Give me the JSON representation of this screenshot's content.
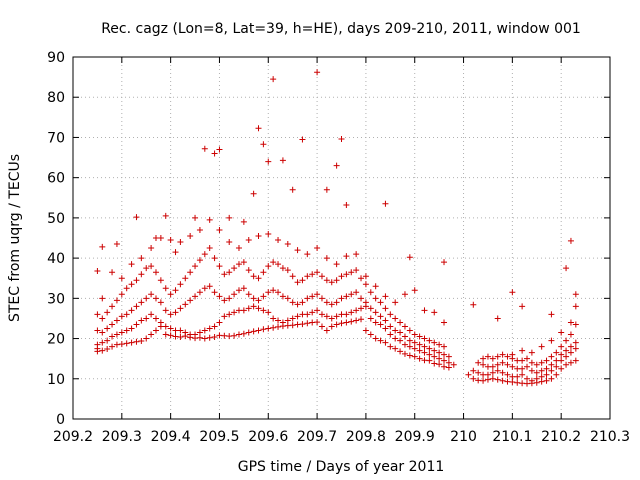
{
  "chart_data": {
    "type": "scatter",
    "title": "Rec. cagz (Lon=8, Lat=39, h=HE), days 209-210, 2011, window 001",
    "xlabel": "GPS time / Days of year 2011",
    "ylabel": "STEC from uqrg / TECUs",
    "xlim": [
      209.2,
      210.3
    ],
    "ylim": [
      0,
      90
    ],
    "xticks": [
      "209.2",
      "209.3",
      "209.4",
      "209.5",
      "209.6",
      "209.7",
      "209.8",
      "209.9",
      "210",
      "210.1",
      "210.2",
      "210.3"
    ],
    "yticks": [
      "0",
      "10",
      "20",
      "30",
      "40",
      "50",
      "60",
      "70",
      "80",
      "90"
    ],
    "grid": true,
    "marker": "+",
    "color": "#cc0000",
    "series": [
      {
        "x": [
          209.25,
          209.25,
          209.26,
          209.27,
          209.28,
          209.29,
          209.3,
          209.31,
          209.32,
          209.33,
          209.34,
          209.35,
          209.36,
          209.37,
          209.38,
          209.39,
          209.4,
          209.41,
          209.42,
          209.43,
          209.44,
          209.45,
          209.46,
          209.47,
          209.48,
          209.49,
          209.5,
          209.51,
          209.52,
          209.53,
          209.54,
          209.55,
          209.56,
          209.57,
          209.58,
          209.59,
          209.6,
          209.61,
          209.62,
          209.63,
          209.64,
          209.65,
          209.66,
          209.67,
          209.68,
          209.69,
          209.7,
          209.71,
          209.72,
          209.73,
          209.74,
          209.75,
          209.76,
          209.77,
          209.78,
          209.79,
          209.8,
          209.81,
          209.82,
          209.83,
          209.84,
          209.85,
          209.86,
          209.87,
          209.88,
          209.89,
          209.9,
          209.91,
          209.92,
          209.93,
          209.94,
          209.95,
          209.96,
          209.97,
          210.01,
          210.02,
          210.03,
          210.04,
          210.05,
          210.06,
          210.07,
          210.08,
          210.09,
          210.1,
          210.11,
          210.12,
          210.13,
          210.14,
          210.15,
          210.16,
          210.17,
          210.18,
          210.19,
          210.2,
          210.21,
          210.22,
          210.23
        ],
        "y": [
          16.8,
          17.5,
          17.0,
          17.4,
          18.0,
          18.5,
          18.6,
          18.8,
          19.0,
          19.2,
          19.4,
          20.0,
          21.0,
          22.0,
          23.0,
          21.0,
          20.8,
          20.5,
          20.4,
          20.6,
          20.3,
          20.1,
          20.2,
          20.0,
          20.2,
          20.4,
          20.8,
          20.7,
          20.6,
          20.7,
          21.0,
          21.2,
          21.5,
          21.8,
          22.0,
          22.3,
          22.5,
          22.7,
          22.9,
          23.1,
          23.2,
          23.3,
          23.5,
          23.6,
          23.8,
          24.0,
          24.1,
          23.0,
          22.0,
          23.0,
          23.5,
          23.8,
          24.0,
          24.2,
          24.5,
          24.8,
          22.0,
          21.0,
          20.0,
          19.5,
          19.0,
          18.0,
          17.5,
          16.8,
          16.2,
          15.8,
          15.5,
          15.0,
          14.6,
          14.5,
          13.8,
          13.6,
          13.0,
          12.8,
          11.0,
          10.0,
          9.6,
          9.5,
          9.8,
          10.0,
          9.8,
          9.5,
          9.3,
          9.2,
          9.0,
          8.9,
          8.8,
          8.9,
          9.0,
          9.3,
          9.5,
          10.0,
          11.0,
          12.5,
          13.5,
          14.0,
          14.5
        ]
      },
      {
        "x": [
          209.25,
          209.26,
          209.27,
          209.28,
          209.29,
          209.3,
          209.31,
          209.32,
          209.33,
          209.34,
          209.35,
          209.36,
          209.37,
          209.38,
          209.39,
          209.4,
          209.41,
          209.42,
          209.43,
          209.44,
          209.45,
          209.46,
          209.47,
          209.48,
          209.49,
          209.5,
          209.51,
          209.52,
          209.53,
          209.54,
          209.55,
          209.56,
          209.57,
          209.58,
          209.59,
          209.6,
          209.61,
          209.62,
          209.63,
          209.64,
          209.65,
          209.66,
          209.67,
          209.68,
          209.69,
          209.7,
          209.71,
          209.72,
          209.73,
          209.74,
          209.75,
          209.76,
          209.77,
          209.78,
          209.79,
          209.8,
          209.81,
          209.82,
          209.83,
          209.84,
          209.85,
          209.86,
          209.87,
          209.88,
          209.89,
          209.9,
          209.91,
          209.92,
          209.93,
          209.94,
          209.95,
          209.96,
          209.97,
          209.98,
          210.02,
          210.03,
          210.04,
          210.05,
          210.06,
          210.07,
          210.08,
          210.09,
          210.1,
          210.11,
          210.12,
          210.13,
          210.14,
          210.15,
          210.16,
          210.17,
          210.18,
          210.19,
          210.2,
          210.21,
          210.22,
          210.23
        ],
        "y": [
          18.5,
          19.0,
          19.5,
          20.5,
          21.0,
          21.5,
          22.0,
          22.5,
          23.5,
          24.5,
          25.0,
          26.0,
          25.0,
          24.0,
          23.0,
          22.5,
          22.0,
          22.0,
          21.5,
          21.0,
          21.0,
          21.5,
          22.0,
          22.5,
          23.0,
          24.0,
          25.5,
          26.0,
          26.5,
          27.0,
          27.0,
          27.5,
          28.0,
          27.5,
          27.0,
          26.5,
          25.0,
          24.5,
          24.0,
          24.5,
          25.0,
          25.5,
          26.0,
          26.0,
          26.5,
          27.0,
          26.0,
          25.5,
          25.0,
          25.5,
          26.0,
          26.0,
          26.5,
          27.0,
          27.5,
          28.0,
          25.0,
          24.0,
          23.5,
          22.5,
          21.0,
          20.0,
          19.5,
          18.5,
          18.0,
          17.5,
          17.0,
          16.5,
          16.0,
          15.5,
          15.0,
          14.5,
          14.0,
          13.5,
          12.0,
          11.5,
          11.0,
          11.0,
          11.5,
          12.0,
          11.5,
          11.0,
          10.5,
          10.5,
          11.0,
          10.0,
          9.5,
          10.0,
          10.5,
          11.0,
          12.0,
          13.0,
          14.5,
          15.5,
          16.5,
          17.5
        ]
      },
      {
        "x": [
          209.25,
          209.26,
          209.27,
          209.28,
          209.29,
          209.3,
          209.31,
          209.32,
          209.33,
          209.34,
          209.35,
          209.36,
          209.37,
          209.38,
          209.39,
          209.4,
          209.41,
          209.42,
          209.43,
          209.44,
          209.45,
          209.46,
          209.47,
          209.48,
          209.49,
          209.5,
          209.51,
          209.52,
          209.53,
          209.54,
          209.55,
          209.56,
          209.57,
          209.58,
          209.59,
          209.6,
          209.61,
          209.62,
          209.63,
          209.64,
          209.65,
          209.66,
          209.67,
          209.68,
          209.69,
          209.7,
          209.71,
          209.72,
          209.73,
          209.74,
          209.75,
          209.76,
          209.77,
          209.78,
          209.79,
          209.8,
          209.81,
          209.82,
          209.83,
          209.84,
          209.85,
          209.86,
          209.87,
          209.88,
          209.89,
          209.9,
          209.91,
          209.92,
          209.93,
          209.94,
          209.95,
          209.96,
          209.97,
          210.03,
          210.04,
          210.05,
          210.06,
          210.07,
          210.08,
          210.09,
          210.1,
          210.11,
          210.12,
          210.13,
          210.14,
          210.15,
          210.16,
          210.17,
          210.18,
          210.19,
          210.2,
          210.21,
          210.22,
          210.23
        ],
        "y": [
          22.0,
          21.5,
          22.5,
          23.5,
          24.5,
          25.5,
          26.0,
          27.0,
          28.0,
          29.0,
          30.0,
          31.0,
          30.0,
          29.0,
          27.0,
          26.0,
          26.5,
          27.5,
          28.5,
          29.5,
          30.5,
          31.5,
          32.5,
          33.0,
          31.5,
          30.5,
          29.5,
          30.0,
          31.0,
          32.0,
          32.5,
          31.0,
          30.0,
          29.5,
          30.5,
          31.5,
          32.0,
          31.5,
          30.5,
          30.0,
          29.0,
          28.5,
          29.0,
          30.0,
          30.5,
          31.0,
          30.0,
          29.0,
          28.5,
          29.0,
          30.0,
          30.5,
          31.0,
          31.5,
          30.0,
          29.0,
          27.5,
          26.5,
          25.5,
          24.5,
          23.0,
          22.0,
          21.5,
          20.5,
          19.5,
          19.0,
          18.5,
          18.0,
          17.5,
          17.0,
          16.5,
          16.0,
          15.5,
          14.0,
          13.5,
          13.0,
          13.0,
          13.5,
          14.0,
          13.5,
          13.0,
          12.5,
          12.5,
          13.0,
          12.0,
          11.5,
          12.0,
          12.5,
          13.5,
          14.5,
          16.0,
          17.0,
          18.0,
          19.0
        ]
      },
      {
        "x": [
          209.25,
          209.26,
          209.27,
          209.28,
          209.29,
          209.3,
          209.31,
          209.32,
          209.33,
          209.34,
          209.35,
          209.36,
          209.37,
          209.38,
          209.39,
          209.4,
          209.41,
          209.42,
          209.43,
          209.44,
          209.45,
          209.46,
          209.47,
          209.48,
          209.49,
          209.5,
          209.51,
          209.52,
          209.53,
          209.54,
          209.55,
          209.56,
          209.57,
          209.58,
          209.59,
          209.6,
          209.61,
          209.62,
          209.63,
          209.64,
          209.65,
          209.66,
          209.67,
          209.68,
          209.69,
          209.7,
          209.71,
          209.72,
          209.73,
          209.74,
          209.75,
          209.76,
          209.77,
          209.78,
          209.79,
          209.8,
          209.81,
          209.82,
          209.83,
          209.84,
          209.85,
          209.86,
          209.87,
          209.88,
          209.89,
          209.9,
          209.91,
          209.92,
          209.93,
          209.94,
          209.95,
          209.96,
          210.04,
          210.05,
          210.06,
          210.07,
          210.08,
          210.09,
          210.1,
          210.11,
          210.12,
          210.13,
          210.14,
          210.15,
          210.16,
          210.17,
          210.18,
          210.19,
          210.2,
          210.21,
          210.22,
          210.23
        ],
        "y": [
          26.0,
          25.0,
          26.5,
          28.0,
          29.5,
          31.0,
          32.5,
          33.5,
          34.5,
          36.0,
          37.5,
          38.0,
          36.5,
          34.5,
          32.5,
          31.0,
          32.0,
          33.5,
          35.0,
          36.5,
          38.0,
          39.5,
          41.0,
          42.5,
          40.0,
          38.0,
          36.0,
          36.5,
          37.5,
          38.5,
          39.0,
          37.0,
          35.5,
          35.0,
          36.5,
          38.0,
          39.0,
          38.5,
          37.5,
          37.0,
          35.5,
          34.0,
          34.5,
          35.5,
          36.0,
          36.5,
          35.5,
          34.5,
          34.0,
          34.5,
          35.5,
          36.0,
          36.5,
          37.0,
          35.0,
          33.5,
          31.5,
          30.0,
          29.0,
          27.5,
          26.0,
          25.0,
          24.0,
          23.0,
          22.0,
          21.0,
          20.5,
          20.0,
          19.5,
          19.0,
          18.5,
          18.0,
          15.0,
          15.5,
          15.0,
          15.5,
          16.0,
          15.5,
          15.0,
          14.5,
          14.5,
          15.0,
          14.0,
          13.5,
          14.0,
          14.5,
          15.5,
          16.5,
          18.0,
          19.5,
          21.0,
          23.5
        ]
      },
      {
        "x": [
          209.25,
          209.26,
          209.28,
          209.3,
          209.32,
          209.34,
          209.36,
          209.38,
          209.4,
          209.42,
          209.44,
          209.46,
          209.48,
          209.5,
          209.52,
          209.54,
          209.56,
          209.58,
          209.6,
          209.62,
          209.64,
          209.66,
          209.68,
          209.7,
          209.72,
          209.74,
          209.76,
          209.78,
          209.8,
          209.82,
          209.84,
          209.86,
          209.88,
          209.9,
          209.92,
          209.94,
          209.96,
          210.1,
          210.12,
          210.14,
          210.16,
          210.18,
          210.2,
          210.22,
          210.23
        ],
        "y": [
          36.8,
          30.0,
          36.5,
          35.0,
          38.5,
          40.0,
          42.5,
          45.0,
          44.5,
          44.0,
          45.5,
          47.0,
          49.5,
          47.0,
          44.0,
          42.5,
          44.5,
          45.5,
          46.0,
          44.5,
          43.5,
          42.0,
          41.0,
          42.5,
          40.0,
          38.5,
          40.5,
          41.0,
          35.5,
          33.0,
          30.5,
          29.0,
          31.0,
          32.0,
          27.0,
          26.5,
          24.0,
          16.0,
          17.0,
          16.5,
          18.0,
          19.5,
          21.5,
          24.0,
          28.0
        ]
      },
      {
        "x": [
          209.26,
          209.29,
          209.33,
          209.37,
          209.39,
          209.41,
          209.45,
          209.47,
          209.49,
          209.5,
          209.52,
          209.55,
          209.57,
          209.58,
          209.59,
          209.6,
          209.61,
          209.63,
          209.65,
          209.67,
          209.7,
          209.72,
          209.74,
          209.75,
          209.76,
          209.84,
          209.89,
          209.96,
          210.02,
          210.07,
          210.1,
          210.12,
          210.18,
          210.21,
          210.22,
          210.23
        ],
        "y": [
          42.8,
          43.5,
          50.2,
          45.0,
          50.5,
          41.5,
          50.0,
          67.2,
          66.0,
          67.0,
          50.0,
          49.0,
          56.0,
          72.3,
          68.3,
          64.0,
          84.5,
          64.3,
          57.0,
          69.5,
          86.2,
          57.0,
          63.0,
          69.6,
          53.2,
          53.5,
          40.2,
          39.0,
          28.4,
          25.0,
          31.5,
          28.0,
          26.0,
          37.5,
          44.3,
          31.0
        ]
      }
    ]
  }
}
